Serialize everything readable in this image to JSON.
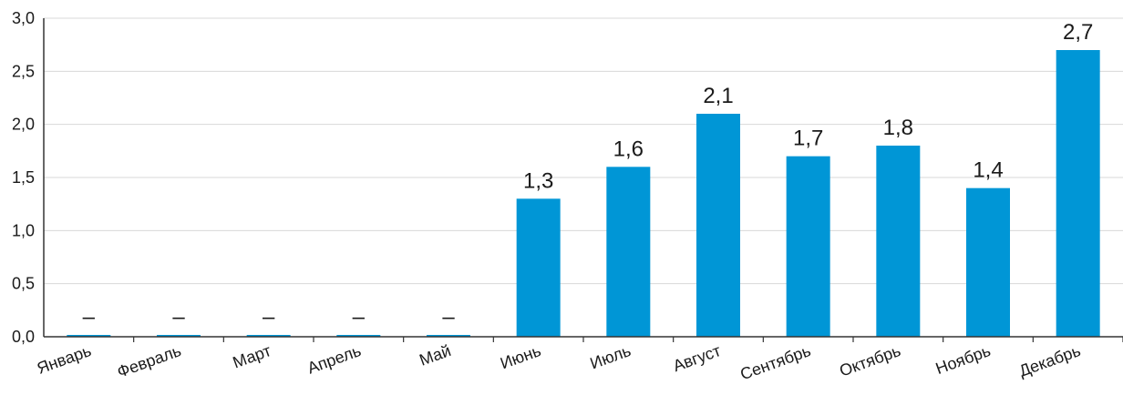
{
  "chart_data": {
    "type": "bar",
    "categories": [
      "Январь",
      "Февраль",
      "Март",
      "Апрель",
      "Май",
      "Июнь",
      "Июль",
      "Август",
      "Сентябрь",
      "Октябрь",
      "Ноябрь",
      "Декабрь"
    ],
    "values": [
      0,
      0,
      0,
      0,
      0,
      1.3,
      1.6,
      2.1,
      1.7,
      1.8,
      1.4,
      2.7
    ],
    "value_labels": [
      "–",
      "–",
      "–",
      "–",
      "–",
      "1,3",
      "1,6",
      "2,1",
      "1,7",
      "1,8",
      "1,4",
      "2,7"
    ],
    "yticks": [
      0,
      0.5,
      1.0,
      1.5,
      2.0,
      2.5,
      3.0
    ],
    "ytick_labels": [
      "0,0",
      "0,5",
      "1,0",
      "1,5",
      "2,0",
      "2,5",
      "3,0"
    ],
    "ylim": [
      0,
      3.0
    ],
    "grid": true,
    "legend": "none",
    "title": "",
    "xlabel": "",
    "ylabel": "",
    "bar_color": "#0096d6"
  }
}
